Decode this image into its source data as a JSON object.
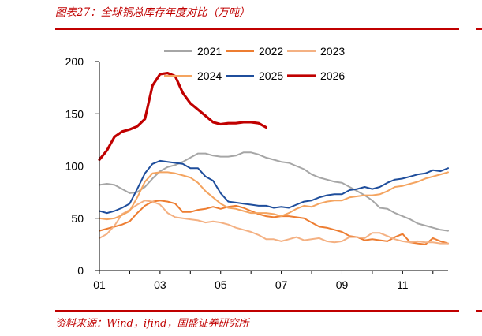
{
  "header": {
    "title": "图表27：全球铜总库存年度对比（万吨）"
  },
  "footer": {
    "source": "资料来源：Wind，ifind，国盛证券研究所"
  },
  "chart_data": {
    "type": "line",
    "title": "图表27：全球铜总库存年度对比（万吨）",
    "xlabel": "",
    "ylabel": "",
    "ylim": [
      0,
      200
    ],
    "xlim": [
      1,
      12.5
    ],
    "x_tick_labels": [
      "01",
      "03",
      "05",
      "07",
      "09",
      "11"
    ],
    "y_tick_labels": [
      "0",
      "50",
      "100",
      "150",
      "200"
    ],
    "y_ticks": [
      0,
      50,
      100,
      150,
      200
    ],
    "grid": false,
    "legend_position": "top",
    "series": [
      {
        "name": "2021",
        "color": "#a6a6a6",
        "x": [
          1.0,
          1.25,
          1.5,
          1.75,
          2.0,
          2.25,
          2.5,
          2.75,
          3.0,
          3.25,
          3.5,
          3.75,
          4.0,
          4.25,
          4.5,
          4.75,
          5.0,
          5.25,
          5.5,
          5.75,
          6.0,
          6.25,
          6.5,
          6.75,
          7.0,
          7.25,
          7.5,
          7.75,
          8.0,
          8.25,
          8.5,
          8.75,
          9.0,
          9.25,
          9.5,
          9.75,
          10.0,
          10.25,
          10.5,
          10.75,
          11.0,
          11.25,
          11.5,
          11.75,
          12.0,
          12.25,
          12.5
        ],
        "values": [
          82,
          83,
          82,
          78,
          74,
          75,
          80,
          88,
          95,
          99,
          101,
          104,
          108,
          112,
          112,
          110,
          109,
          109,
          110,
          113,
          113,
          111,
          108,
          106,
          104,
          103,
          100,
          97,
          92,
          89,
          87,
          85,
          84,
          80,
          76,
          72,
          67,
          60,
          59,
          55,
          52,
          49,
          45,
          43,
          41,
          39,
          38
        ]
      },
      {
        "name": "2022",
        "color": "#ed7d31",
        "x": [
          1.0,
          1.25,
          1.5,
          1.75,
          2.0,
          2.25,
          2.5,
          2.75,
          3.0,
          3.25,
          3.5,
          3.75,
          4.0,
          4.25,
          4.5,
          4.75,
          5.0,
          5.25,
          5.5,
          5.75,
          6.0,
          6.25,
          6.5,
          6.75,
          7.0,
          7.25,
          7.5,
          7.75,
          8.0,
          8.25,
          8.5,
          8.75,
          9.0,
          9.25,
          9.5,
          9.75,
          10.0,
          10.25,
          10.5,
          10.75,
          11.0,
          11.25,
          11.5,
          11.75,
          12.0,
          12.25,
          12.5
        ],
        "values": [
          38,
          40,
          42,
          44,
          47,
          55,
          62,
          66,
          67,
          66,
          64,
          56,
          56,
          58,
          59,
          61,
          59,
          61,
          62,
          60,
          57,
          54,
          52,
          51,
          52,
          52,
          51,
          50,
          46,
          42,
          41,
          39,
          37,
          33,
          32,
          29,
          30,
          29,
          28,
          32,
          35,
          27,
          26,
          25,
          31,
          28,
          26
        ]
      },
      {
        "name": "2023",
        "color": "#f4b183",
        "x": [
          1.0,
          1.25,
          1.5,
          1.75,
          2.0,
          2.25,
          2.5,
          2.75,
          3.0,
          3.25,
          3.5,
          3.75,
          4.0,
          4.25,
          4.5,
          4.75,
          5.0,
          5.25,
          5.5,
          5.75,
          6.0,
          6.25,
          6.5,
          6.75,
          7.0,
          7.25,
          7.5,
          7.75,
          8.0,
          8.25,
          8.5,
          8.75,
          9.0,
          9.25,
          9.5,
          9.75,
          10.0,
          10.25,
          10.5,
          10.75,
          11.0,
          11.25,
          11.5,
          11.75,
          12.0,
          12.25,
          12.5
        ],
        "values": [
          31,
          35,
          43,
          54,
          58,
          63,
          67,
          66,
          63,
          55,
          51,
          50,
          49,
          48,
          46,
          47,
          46,
          44,
          41,
          39,
          37,
          34,
          30,
          30,
          28,
          30,
          32,
          29,
          30,
          31,
          28,
          27,
          28,
          32,
          32,
          31,
          36,
          36,
          33,
          30,
          28,
          27,
          28,
          27,
          27,
          26,
          26
        ]
      },
      {
        "name": "2024",
        "color": "#f4a460",
        "x": [
          1.0,
          1.25,
          1.5,
          1.75,
          2.0,
          2.25,
          2.5,
          2.75,
          3.0,
          3.25,
          3.5,
          3.75,
          4.0,
          4.25,
          4.5,
          4.75,
          5.0,
          5.25,
          5.5,
          5.75,
          6.0,
          6.25,
          6.5,
          6.75,
          7.0,
          7.25,
          7.5,
          7.75,
          8.0,
          8.25,
          8.5,
          8.75,
          9.0,
          9.25,
          9.5,
          9.75,
          10.0,
          10.25,
          10.5,
          10.75,
          11.0,
          11.25,
          11.5,
          11.75,
          12.0,
          12.25,
          12.5
        ],
        "values": [
          50,
          49,
          50,
          53,
          57,
          70,
          85,
          93,
          94,
          94,
          93,
          91,
          89,
          84,
          76,
          70,
          64,
          60,
          59,
          57,
          55,
          55,
          55,
          54,
          52,
          55,
          59,
          62,
          61,
          64,
          66,
          67,
          67,
          70,
          71,
          72,
          72,
          73,
          76,
          80,
          81,
          83,
          85,
          88,
          90,
          92,
          94
        ]
      },
      {
        "name": "2025",
        "color": "#1f4e9c",
        "x": [
          1.0,
          1.25,
          1.5,
          1.75,
          2.0,
          2.25,
          2.5,
          2.75,
          3.0,
          3.25,
          3.5,
          3.75,
          4.0,
          4.25,
          4.5,
          4.75,
          5.0,
          5.25,
          5.5,
          5.75,
          6.0,
          6.25,
          6.5,
          6.75,
          7.0,
          7.25,
          7.5,
          7.75,
          8.0,
          8.25,
          8.5,
          8.75,
          9.0,
          9.25,
          9.5,
          9.75,
          10.0,
          10.25,
          10.5,
          10.75,
          11.0,
          11.25,
          11.5,
          11.75,
          12.0,
          12.25,
          12.5
        ],
        "values": [
          57,
          55,
          57,
          60,
          64,
          78,
          93,
          102,
          105,
          104,
          103,
          102,
          98,
          98,
          90,
          86,
          74,
          66,
          65,
          64,
          63,
          62,
          62,
          60,
          61,
          60,
          63,
          66,
          67,
          70,
          72,
          73,
          73,
          77,
          78,
          80,
          78,
          80,
          84,
          87,
          88,
          90,
          92,
          93,
          96,
          95,
          98
        ]
      },
      {
        "name": "2026",
        "color": "#c00000",
        "x": [
          1.0,
          1.25,
          1.5,
          1.75,
          2.0,
          2.25,
          2.5,
          2.75,
          3.0,
          3.25,
          3.5,
          3.75,
          4.0,
          4.25,
          4.5,
          4.75,
          5.0,
          5.25,
          5.5,
          5.75,
          6.0,
          6.25,
          6.5
        ],
        "values": [
          106,
          115,
          128,
          133,
          135,
          138,
          145,
          177,
          188,
          189,
          186,
          170,
          160,
          154,
          148,
          142,
          140,
          141,
          141,
          142,
          142,
          141,
          137
        ]
      }
    ]
  }
}
